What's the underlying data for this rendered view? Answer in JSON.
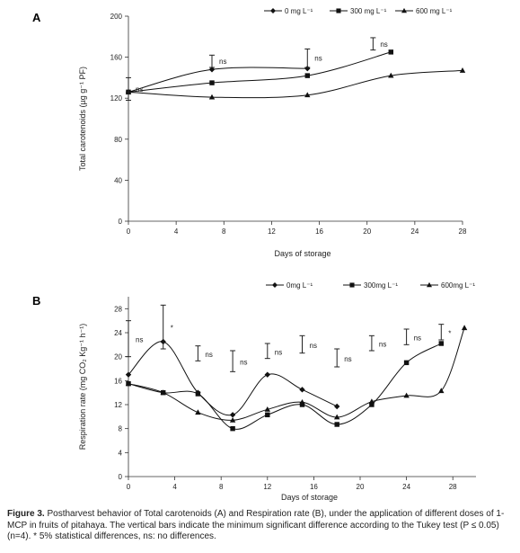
{
  "chart_data": [
    {
      "panel": "A",
      "type": "line",
      "xlabel": "Days of storage",
      "ylabel": "Total carotenoids  (µg g⁻¹ PF)",
      "xlim": [
        0,
        28
      ],
      "ylim": [
        0,
        200
      ],
      "xticks": [
        0,
        4,
        8,
        12,
        16,
        20,
        24,
        28
      ],
      "yticks": [
        0,
        40,
        80,
        120,
        160,
        200
      ],
      "legend_position": "top-right",
      "grid": false,
      "series": [
        {
          "name": "0 mg L⁻¹",
          "marker": "diamond",
          "x": [
            0,
            7,
            15
          ],
          "y": [
            126,
            148,
            149
          ]
        },
        {
          "name": "300 mg L⁻¹",
          "marker": "square",
          "x": [
            0,
            7,
            15,
            22
          ],
          "y": [
            126,
            135,
            142,
            165
          ]
        },
        {
          "name": "600 mg L⁻¹",
          "marker": "triangle",
          "x": [
            0,
            7,
            15,
            22,
            28
          ],
          "y": [
            126,
            121,
            123,
            142,
            147
          ]
        }
      ],
      "error_bars": [
        {
          "x": 0,
          "low": 118,
          "high": 140,
          "label": "ns"
        },
        {
          "x": 7,
          "low": 150,
          "high": 162,
          "label": "ns"
        },
        {
          "x": 15,
          "low": 150,
          "high": 168,
          "label": "ns"
        },
        {
          "x": 20.5,
          "low": 167,
          "high": 179,
          "label": "ns"
        }
      ]
    },
    {
      "panel": "B",
      "type": "line",
      "xlabel": "Days of storage",
      "ylabel": "Respiration rate (mg CO₂ Kg⁻¹ h⁻¹)",
      "xlim": [
        0,
        30
      ],
      "ylim": [
        0,
        30
      ],
      "xticks": [
        0,
        4,
        8,
        12,
        16,
        20,
        24,
        28
      ],
      "yticks": [
        0,
        4,
        8,
        12,
        16,
        20,
        24,
        28
      ],
      "legend_position": "top-right",
      "grid": false,
      "series": [
        {
          "name": "0mg L⁻¹",
          "marker": "diamond",
          "x": [
            0,
            3,
            6,
            9,
            12,
            15,
            18
          ],
          "y": [
            17,
            22.5,
            14,
            10.3,
            17,
            14.5,
            11.7
          ]
        },
        {
          "name": "300mg L⁻¹",
          "marker": "square",
          "x": [
            0,
            3,
            6,
            9,
            12,
            15,
            18,
            21,
            24,
            27
          ],
          "y": [
            15.5,
            14,
            13.8,
            8,
            10.3,
            12,
            8.7,
            12,
            19,
            22.2
          ]
        },
        {
          "name": "600mg L⁻¹",
          "marker": "triangle",
          "x": [
            0,
            3,
            6,
            9,
            12,
            15,
            18,
            21,
            24,
            27,
            29
          ],
          "y": [
            15.5,
            14,
            10.7,
            9.4,
            11.2,
            12.4,
            9.9,
            12.5,
            13.5,
            14.3,
            24.8
          ]
        }
      ],
      "error_bars": [
        {
          "x": 0,
          "low": 20,
          "high": 26,
          "label": "ns"
        },
        {
          "x": 3,
          "low": 21.3,
          "high": 28.6,
          "label": "*"
        },
        {
          "x": 6,
          "low": 19.3,
          "high": 21.8,
          "label": "ns"
        },
        {
          "x": 9,
          "low": 17.5,
          "high": 21,
          "label": "ns"
        },
        {
          "x": 12,
          "low": 19.7,
          "high": 22.2,
          "label": "ns"
        },
        {
          "x": 15,
          "low": 20.6,
          "high": 23.5,
          "label": "ns"
        },
        {
          "x": 18,
          "low": 18.3,
          "high": 21.3,
          "label": "ns"
        },
        {
          "x": 21,
          "low": 21,
          "high": 23.5,
          "label": "ns"
        },
        {
          "x": 24,
          "low": 22,
          "high": 24.6,
          "label": "ns"
        },
        {
          "x": 27,
          "low": 22.8,
          "high": 25.4,
          "label": "*"
        }
      ]
    }
  ],
  "caption": {
    "label": "Figure 3.",
    "text": " Postharvest behavior of Total carotenoids (A) and Respiration rate (B), under the application of different doses of 1-MCP in fruits of pitahaya. The vertical bars indicate the minimum significant difference according to the Tukey test (P ≤ 0.05) (n=4). * 5% statistical differences, ns: no differences."
  }
}
